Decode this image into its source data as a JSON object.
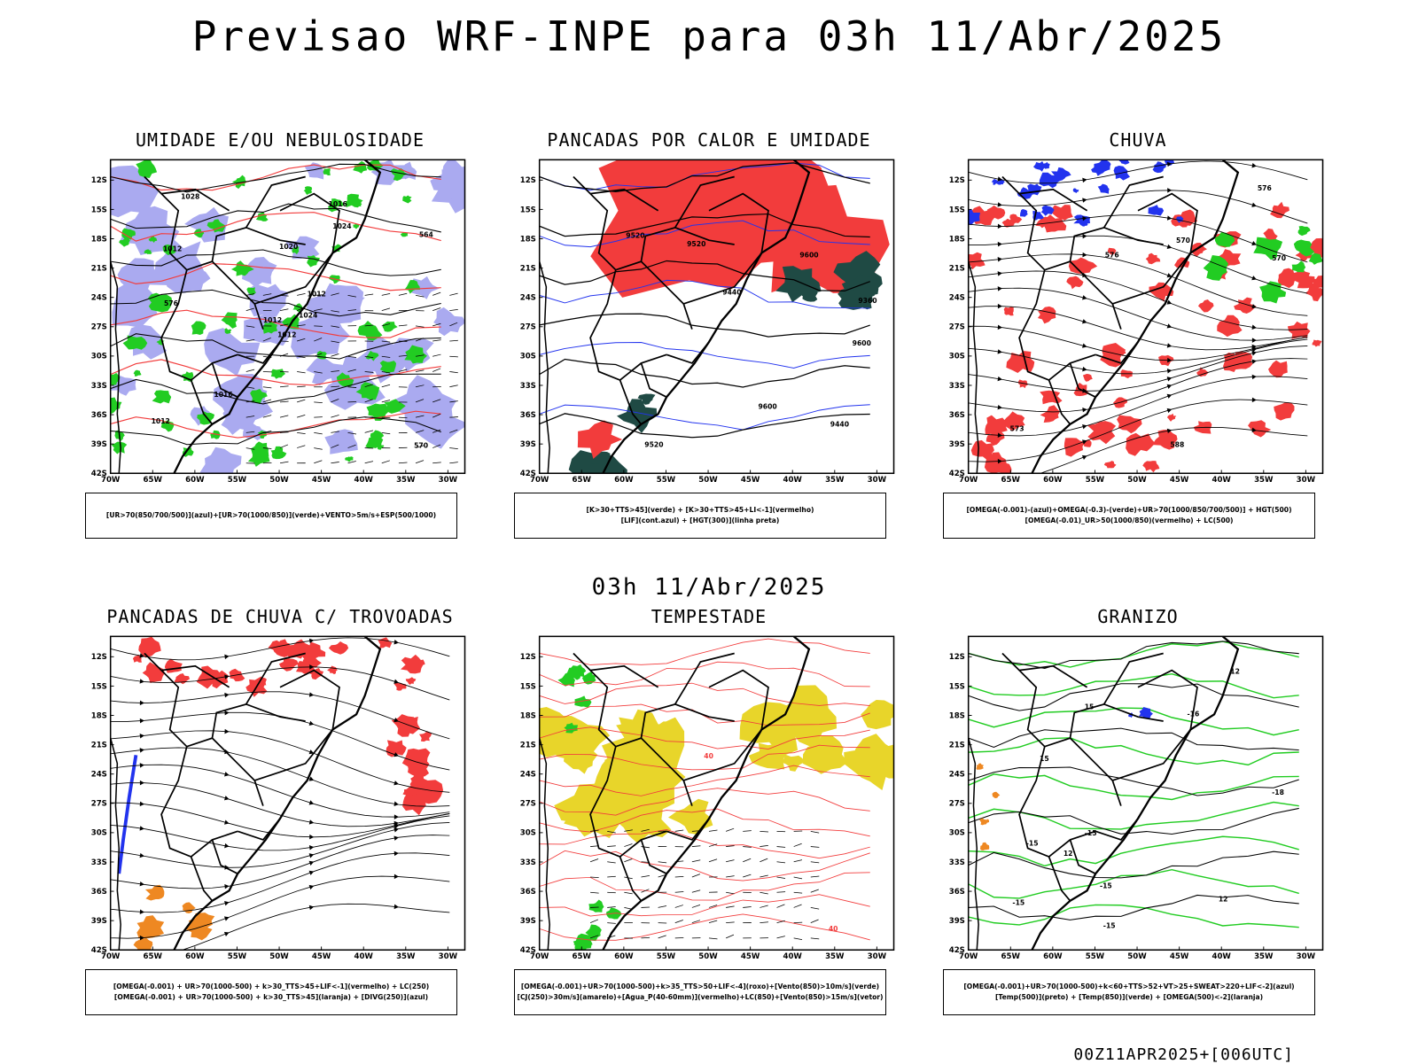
{
  "header": {
    "title": "Previsao WRF-INPE  para 03h 11/Abr/2025",
    "subtitle": "03h 11/Abr/2025",
    "footer": "00Z11APR2025+[006UTC]"
  },
  "axes": {
    "lat_ticks": [
      "12S",
      "15S",
      "18S",
      "21S",
      "24S",
      "27S",
      "30S",
      "33S",
      "36S",
      "39S",
      "42S"
    ],
    "lon_ticks": [
      "70W",
      "65W",
      "60W",
      "55W",
      "50W",
      "45W",
      "40W",
      "35W",
      "30W"
    ]
  },
  "colors": {
    "red": "#f23c3c",
    "green": "#22cc22",
    "blue": "#2233ee",
    "lavender": "#aaaaf0",
    "dark_teal": "#1f4a44",
    "yellow": "#e8d52a",
    "orange": "#ee8822"
  },
  "panels": [
    {
      "id": "umidade",
      "title": "UMIDADE E/OU NEBULOSIDADE",
      "legend": [
        "[UR>70(850/700/500)](azul)+[UR>70(1000/850)](verde)+VENTO>5m/s+ESP(500/1000)"
      ],
      "labels": [
        "1012",
        "1012",
        "1012",
        "1012",
        "1012",
        "1016",
        "1016",
        "1020",
        "1024",
        "1024",
        "1028",
        "570",
        "576",
        "564"
      ]
    },
    {
      "id": "pancadas_calor",
      "title": "PANCADAS POR CALOR E UMIDADE",
      "legend": [
        "[K>30+TTS>45](verde) + [K>30+TTS>45+LI<-1](vermelho)",
        "[LIF](cont.azul) + [HGT(300)](linha preta)"
      ],
      "labels": [
        "9600",
        "9600",
        "9600",
        "9520",
        "9520",
        "9520",
        "9440",
        "9440",
        "9360"
      ]
    },
    {
      "id": "chuva",
      "title": "CHUVA",
      "legend": [
        "[OMEGA(-0.001)-(azul)+OMEGA(-0.3)-(verde)+UR>70(1000/850/700/500)] + HGT(500)",
        "[OMEGA(-0.01)_UR>50(1000/850)(vermelho) + LC(500)"
      ],
      "labels": [
        "588",
        "576",
        "570",
        "576",
        "573",
        "570"
      ]
    },
    {
      "id": "pancadas_trovoadas",
      "title": "PANCADAS DE CHUVA C/ TROVOADAS",
      "legend": [
        "[OMEGA(-0.001) + UR>70(1000-500) + k>30_TTS>45+LIF<-1](vermelho) + LC(250)",
        "[OMEGA(-0.001) + UR>70(1000-500) + k>30_TTS>45](laranja) + [DIVG(250)](azul)"
      ],
      "labels": []
    },
    {
      "id": "tempestade",
      "title": "TEMPESTADE",
      "legend": [
        "[OMEGA(-0.001)+UR>70(1000-500)+k>35_TTS>50+LIF<-4](roxo)+[Vento(850)>10m/s](verde)",
        "[CJ(250)>30m/s](amarelo)+[Agua_P(40-60mm)](vermelho)+LC(850)+[Vento(850)>15m/s](vetor)"
      ],
      "labels": [
        "40",
        "40"
      ]
    },
    {
      "id": "granizo",
      "title": "GRANIZO",
      "legend": [
        "[OMEGA(-0.001)+UR>70(1000-500)+k<60+TTS>52+VT>25+SWEAT>220+LIF<-2](azul)",
        "[Temp(500)](preto) + [Temp(850)](verde) + [OMEGA(500)<-2](laranja)"
      ],
      "labels": [
        "12",
        "12",
        "15",
        "12",
        "15",
        "-15",
        "-18",
        "-15",
        "-15",
        "-16",
        "-15",
        "-15"
      ]
    }
  ]
}
